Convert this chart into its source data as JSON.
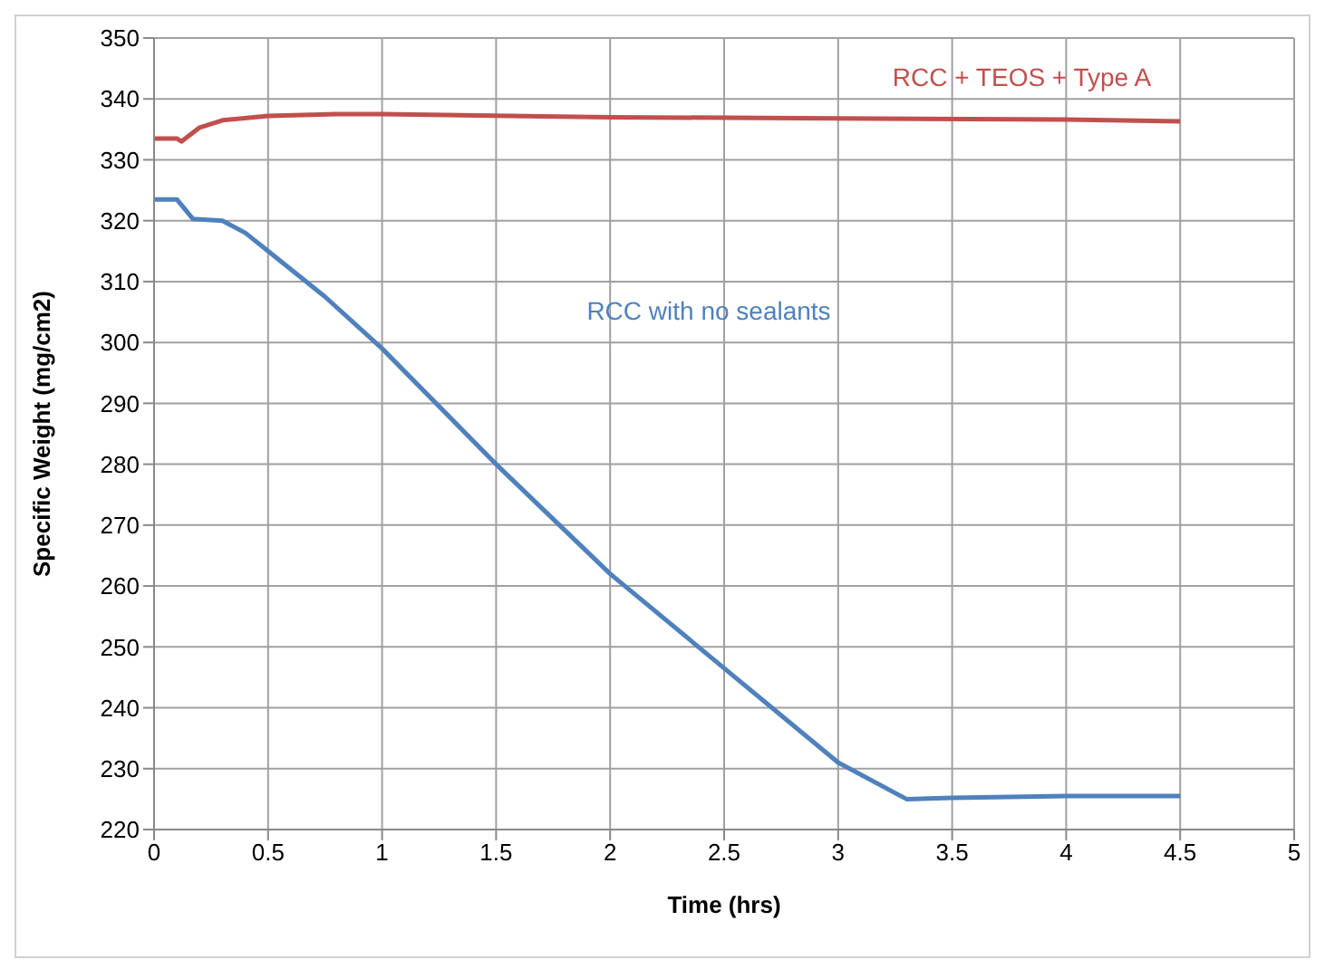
{
  "chart_data": {
    "type": "line",
    "xlabel": "Time (hrs)",
    "ylabel": "Specific Weight (mg/cm2)",
    "xlim": [
      0,
      5
    ],
    "xticks": [
      0,
      0.5,
      1,
      1.5,
      2,
      2.5,
      3,
      3.5,
      4,
      4.5,
      5
    ],
    "ylim": [
      220,
      350
    ],
    "yticks": [
      220,
      230,
      240,
      250,
      260,
      270,
      280,
      290,
      300,
      310,
      320,
      330,
      340,
      350
    ],
    "grid": true,
    "legend": false,
    "marker": "none",
    "line_style": "solid",
    "series": [
      {
        "name": "RCC + TEOS + Type A",
        "color": "#c0504d",
        "x": [
          0,
          0.1,
          0.12,
          0.2,
          0.3,
          0.5,
          0.8,
          1,
          2,
          3,
          4,
          4.5
        ],
        "values": [
          333.5,
          333.5,
          333,
          335.3,
          336.5,
          337.2,
          337.5,
          337.5,
          337,
          336.8,
          336.6,
          336.3
        ]
      },
      {
        "name": "RCC with no sealants",
        "color": "#4f81bd",
        "x": [
          0,
          0.1,
          0.17,
          0.3,
          0.4,
          0.5,
          0.75,
          1,
          1.5,
          2,
          2.5,
          3,
          3.3,
          3.5,
          4,
          4.5
        ],
        "values": [
          323.5,
          323.5,
          320.3,
          320,
          318,
          315,
          307.5,
          299,
          280,
          262,
          246.5,
          231,
          225,
          225.2,
          225.5,
          225.5
        ]
      }
    ]
  }
}
